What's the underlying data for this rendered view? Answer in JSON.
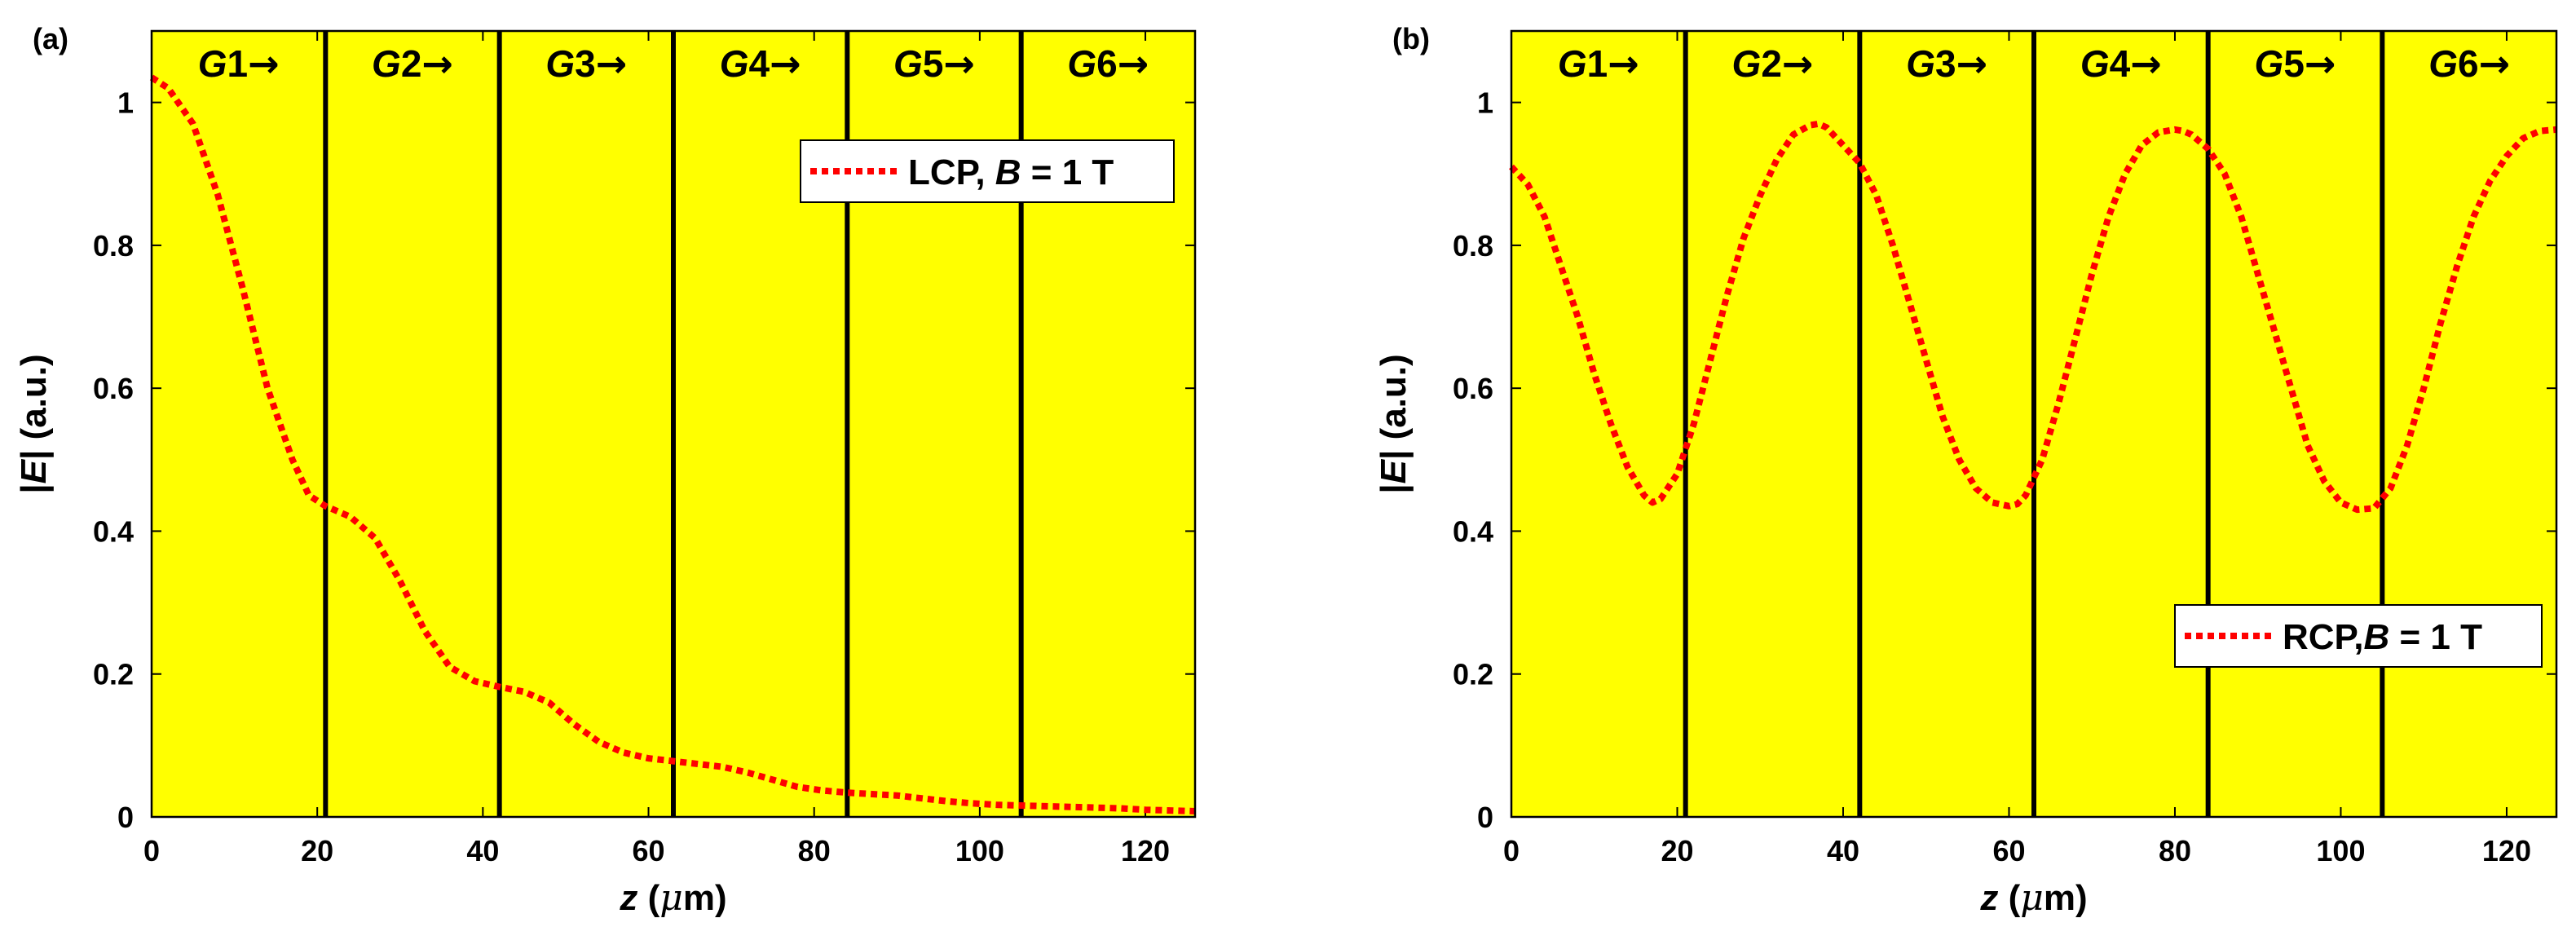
{
  "chart_data": [
    {
      "type": "line",
      "panel_label": "(a)",
      "xlabel_var": "z",
      "xlabel_unit_open": " (",
      "xlabel_unit_mu": "μ",
      "xlabel_unit_close": "m)",
      "ylabel_pre": "|",
      "ylabel_var": "E",
      "ylabel_post": "| (a.u.)",
      "xlim": [
        0,
        126
      ],
      "ylim": [
        0,
        1.1
      ],
      "xticks": [
        0,
        20,
        40,
        60,
        80,
        100,
        120
      ],
      "yticks": [
        0,
        0.2,
        0.4,
        0.6,
        0.8,
        1
      ],
      "ytick_labels": [
        "0",
        "0.2",
        "0.4",
        "0.6",
        "0.8",
        "1"
      ],
      "background_color": "#ffff00",
      "boundaries": [
        21,
        42,
        63,
        84,
        105
      ],
      "grating_labels": [
        {
          "letter": "G",
          "num": "1",
          "x": 10.5
        },
        {
          "letter": "G",
          "num": "2",
          "x": 31.5
        },
        {
          "letter": "G",
          "num": "3",
          "x": 52.5
        },
        {
          "letter": "G",
          "num": "4",
          "x": 73.5
        },
        {
          "letter": "G",
          "num": "5",
          "x": 94.5
        },
        {
          "letter": "G",
          "num": "6",
          "x": 115.5
        }
      ],
      "arrow_glyph": "→",
      "legend": {
        "text_pre": "LCP, ",
        "text_var": "B",
        "text_post": " = 1 T",
        "location": "top-right"
      },
      "series": [
        {
          "name": "LCP, B = 1 T",
          "color": "#ff0000",
          "style": "dotted",
          "x": [
            0,
            2,
            5,
            8,
            11,
            14,
            17,
            19,
            21,
            24,
            27,
            30,
            33,
            36,
            39,
            42,
            45,
            48,
            51,
            54,
            57,
            60,
            63,
            66,
            69,
            72,
            75,
            78,
            81,
            84,
            87,
            90,
            93,
            96,
            99,
            102,
            105,
            108,
            111,
            114,
            117,
            120,
            123,
            126
          ],
          "y": [
            1.035,
            1.02,
            0.97,
            0.87,
            0.74,
            0.6,
            0.5,
            0.45,
            0.435,
            0.42,
            0.39,
            0.33,
            0.26,
            0.21,
            0.19,
            0.182,
            0.175,
            0.16,
            0.13,
            0.105,
            0.09,
            0.082,
            0.078,
            0.074,
            0.07,
            0.062,
            0.052,
            0.042,
            0.037,
            0.034,
            0.032,
            0.03,
            0.026,
            0.022,
            0.019,
            0.017,
            0.016,
            0.015,
            0.014,
            0.013,
            0.012,
            0.01,
            0.009,
            0.008
          ]
        }
      ]
    },
    {
      "type": "line",
      "panel_label": "(b)",
      "xlabel_var": "z",
      "xlabel_unit_open": " (",
      "xlabel_unit_mu": "μ",
      "xlabel_unit_close": "m)",
      "ylabel_pre": "|",
      "ylabel_var": "E",
      "ylabel_post": "| (a.u.)",
      "xlim": [
        0,
        126
      ],
      "ylim": [
        0,
        1.1
      ],
      "xticks": [
        0,
        20,
        40,
        60,
        80,
        100,
        120
      ],
      "yticks": [
        0,
        0.2,
        0.4,
        0.6,
        0.8,
        1
      ],
      "ytick_labels": [
        "0",
        "0.2",
        "0.4",
        "0.6",
        "0.8",
        "1"
      ],
      "background_color": "#ffff00",
      "boundaries": [
        21,
        42,
        63,
        84,
        105
      ],
      "grating_labels": [
        {
          "letter": "G",
          "num": "1",
          "x": 10.5
        },
        {
          "letter": "G",
          "num": "2",
          "x": 31.5
        },
        {
          "letter": "G",
          "num": "3",
          "x": 52.5
        },
        {
          "letter": "G",
          "num": "4",
          "x": 73.5
        },
        {
          "letter": "G",
          "num": "5",
          "x": 94.5
        },
        {
          "letter": "G",
          "num": "6",
          "x": 115.5
        }
      ],
      "arrow_glyph": "→",
      "legend": {
        "text_pre": "RCP,",
        "text_var": "B",
        "text_post": " = 1 T",
        "location": "bottom-right"
      },
      "series": [
        {
          "name": "RCP,B = 1 T",
          "color": "#ff0000",
          "style": "dotted",
          "x": [
            0,
            2,
            4,
            6,
            8,
            10,
            12,
            14,
            16,
            17,
            18,
            20,
            22,
            24,
            26,
            28,
            30,
            32,
            34,
            36,
            37,
            38,
            40,
            42,
            44,
            46,
            48,
            50,
            52,
            54,
            56,
            58,
            60,
            61,
            62,
            64,
            66,
            68,
            70,
            72,
            74,
            76,
            78,
            80,
            81,
            82,
            84,
            86,
            88,
            90,
            92,
            94,
            96,
            98,
            100,
            102,
            104,
            106,
            108,
            110,
            112,
            114,
            116,
            118,
            120,
            122,
            124,
            126
          ],
          "y": [
            0.91,
            0.885,
            0.84,
            0.77,
            0.7,
            0.62,
            0.55,
            0.49,
            0.45,
            0.44,
            0.445,
            0.48,
            0.55,
            0.64,
            0.73,
            0.81,
            0.87,
            0.92,
            0.955,
            0.968,
            0.97,
            0.965,
            0.94,
            0.915,
            0.87,
            0.8,
            0.72,
            0.64,
            0.56,
            0.5,
            0.46,
            0.44,
            0.435,
            0.438,
            0.45,
            0.5,
            0.58,
            0.67,
            0.76,
            0.84,
            0.9,
            0.94,
            0.958,
            0.962,
            0.96,
            0.955,
            0.935,
            0.9,
            0.84,
            0.76,
            0.68,
            0.6,
            0.52,
            0.47,
            0.44,
            0.43,
            0.432,
            0.46,
            0.52,
            0.6,
            0.69,
            0.77,
            0.84,
            0.89,
            0.925,
            0.95,
            0.96,
            0.962
          ]
        }
      ]
    }
  ]
}
